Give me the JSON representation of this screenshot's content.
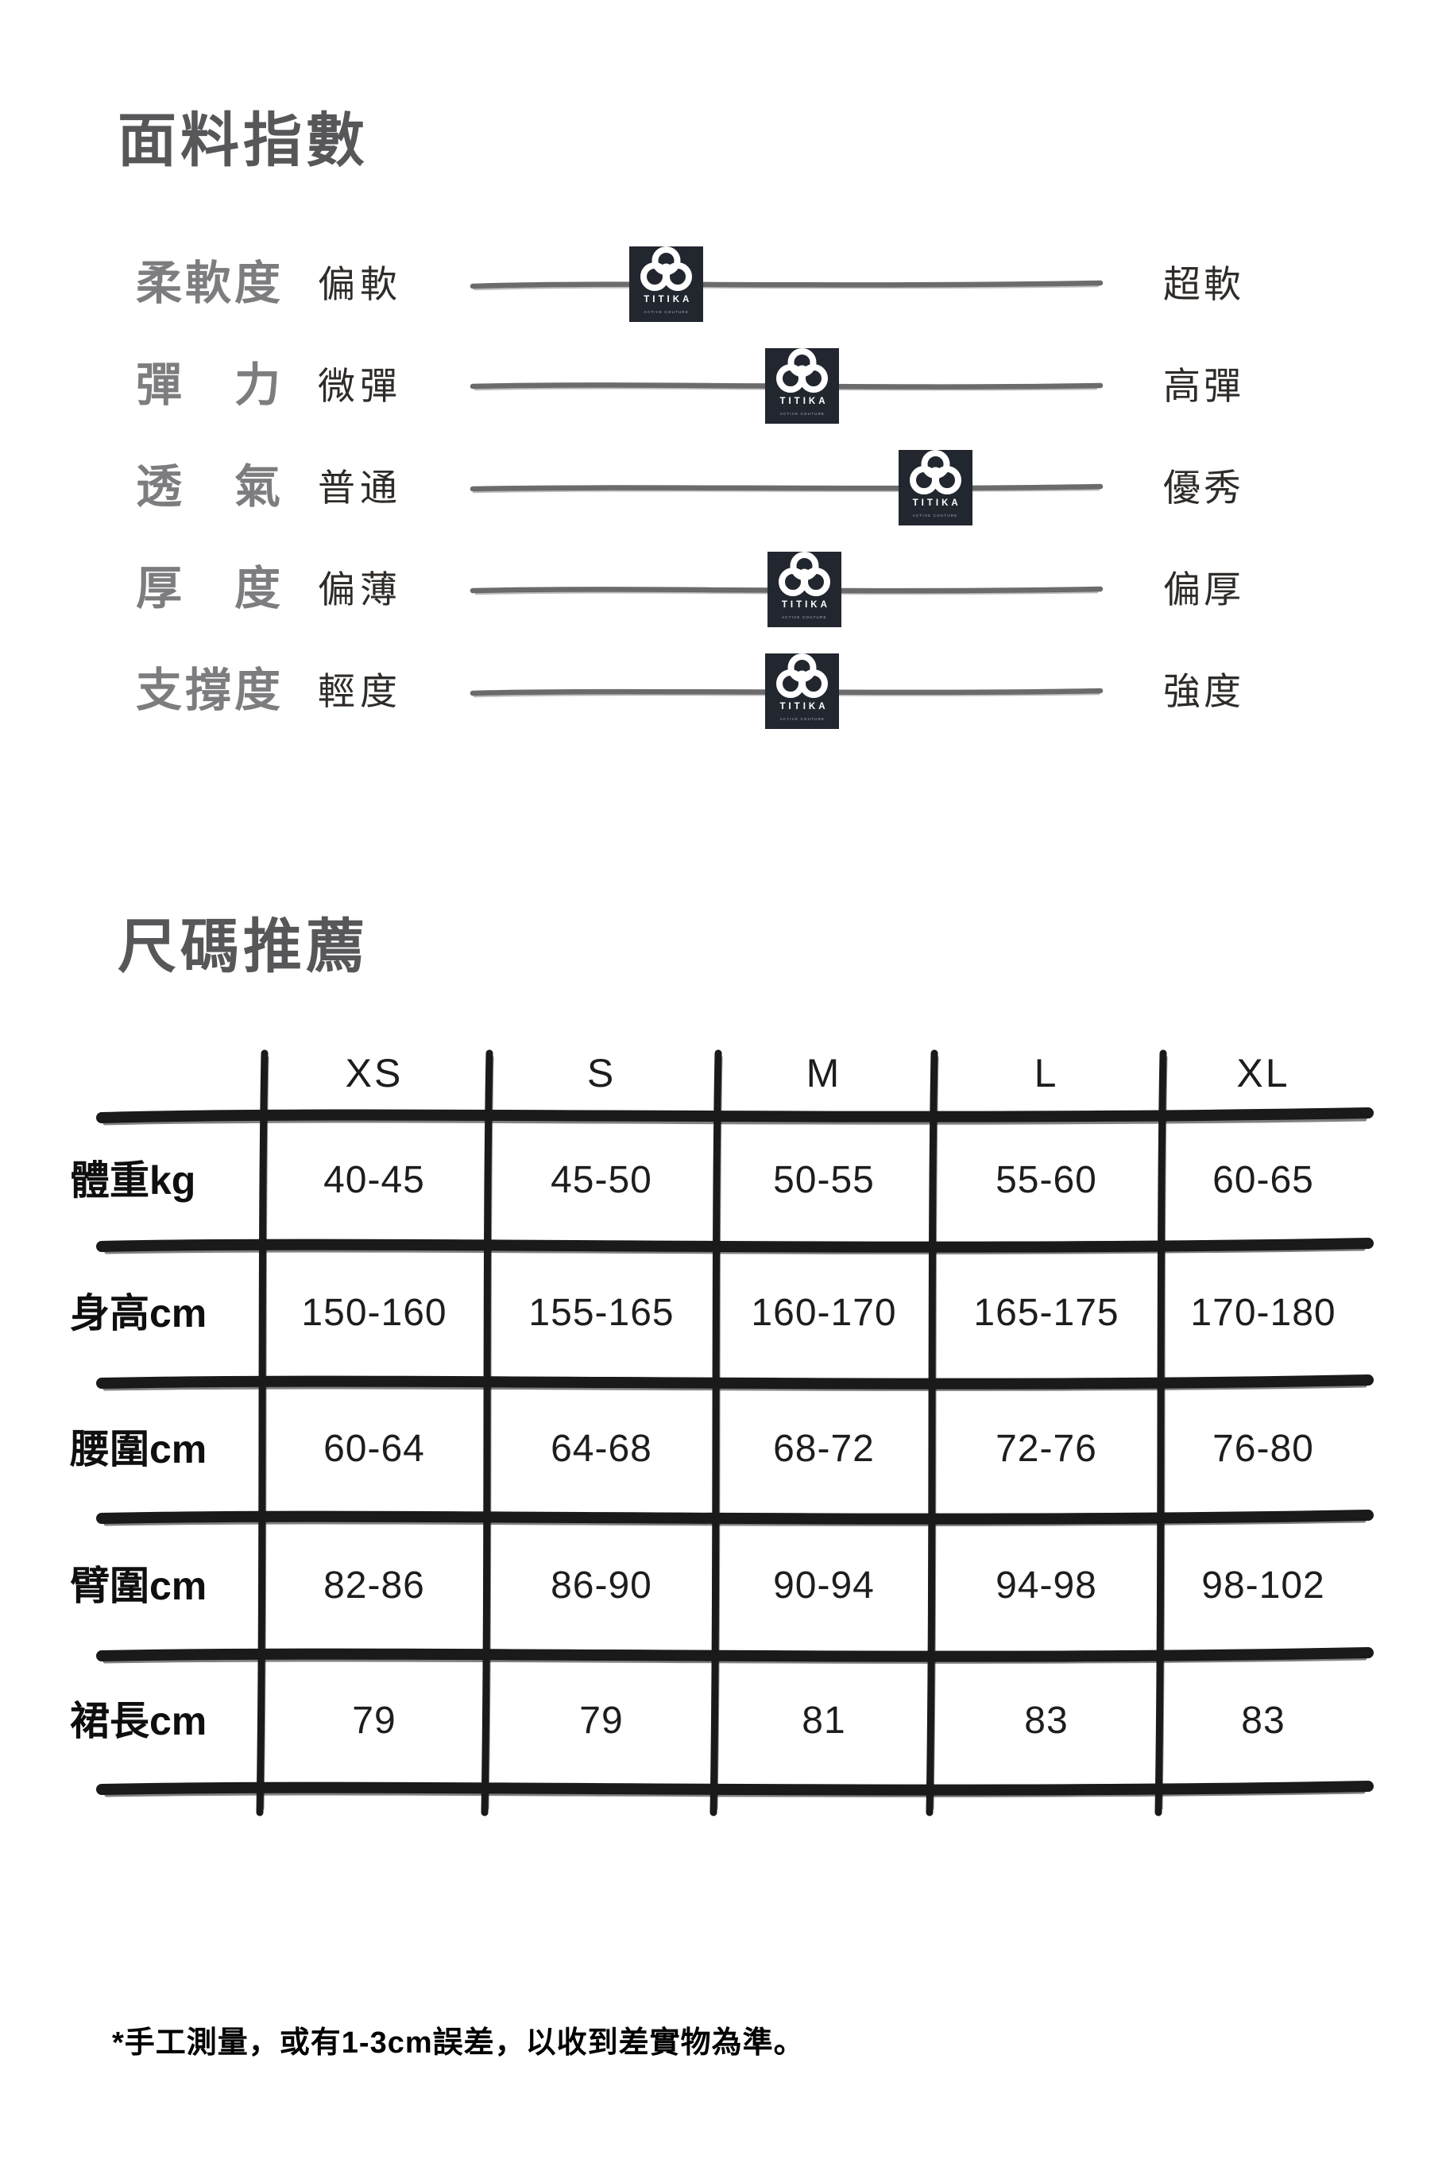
{
  "colors": {
    "title_gray": "#57575a",
    "slider_label_gray": "#7d7d80",
    "slider_line_gray": "#6b6b6b",
    "badge_bg": "#22262f",
    "table_ink": "#1a1a1a"
  },
  "fabric_index": {
    "title": "面料指數",
    "brand_badge": {
      "name": "TITIKA",
      "tagline": "ACTIVE COUTURE"
    },
    "rows": [
      {
        "label": "柔軟度",
        "min_label": "偏軟",
        "max_label": "超軟",
        "position_pct": 31.1
      },
      {
        "label": "彈　力",
        "min_label": "微彈",
        "max_label": "高彈",
        "position_pct": 52.5
      },
      {
        "label": "透　氣",
        "min_label": "普通",
        "max_label": "優秀",
        "position_pct": 73.4
      },
      {
        "label": "厚　度",
        "min_label": "偏薄",
        "max_label": "偏厚",
        "position_pct": 52.8
      },
      {
        "label": "支撐度",
        "min_label": "輕度",
        "max_label": "強度",
        "position_pct": 52.5
      }
    ]
  },
  "size_chart": {
    "title": "尺碼推薦",
    "columns": [
      "XS",
      "S",
      "M",
      "L",
      "XL"
    ],
    "rows": [
      {
        "label": "體重kg",
        "values": [
          "40-45",
          "45-50",
          "50-55",
          "55-60",
          "60-65"
        ]
      },
      {
        "label": "身高cm",
        "values": [
          "150-160",
          "155-165",
          "160-170",
          "165-175",
          "170-180"
        ]
      },
      {
        "label": "腰圍cm",
        "values": [
          "60-64",
          "64-68",
          "68-72",
          "72-76",
          "76-80"
        ]
      },
      {
        "label": "臂圍cm",
        "values": [
          "82-86",
          "86-90",
          "90-94",
          "94-98",
          "98-102"
        ]
      },
      {
        "label": "裙長cm",
        "values": [
          "79",
          "79",
          "81",
          "83",
          "83"
        ]
      }
    ]
  },
  "footnote": "*手工測量，或有1-3cm誤差，以收到差實物為準。"
}
